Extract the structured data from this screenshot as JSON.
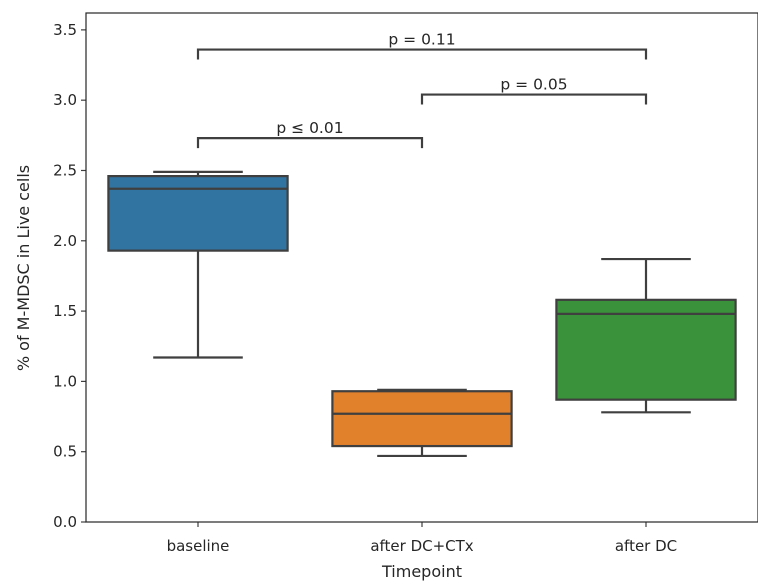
{
  "chart_data": {
    "type": "boxplot",
    "title": "",
    "xlabel": "Timepoint",
    "ylabel": "% of M-MDSC in Live cells",
    "ylim": [
      0,
      3.62
    ],
    "yticks": [
      "0.0",
      "0.5",
      "1.0",
      "1.5",
      "2.0",
      "2.5",
      "3.0",
      "3.5"
    ],
    "grid": false,
    "legend": "none",
    "categories": [
      "baseline",
      "after DC+CTx",
      "after DC"
    ],
    "boxes": [
      {
        "category": "baseline",
        "color": "#3274a1",
        "whisker_low": 1.17,
        "q1": 1.93,
        "median": 2.37,
        "q3": 2.46,
        "whisker_high": 2.49
      },
      {
        "category": "after DC+CTx",
        "color": "#e1812c",
        "whisker_low": 0.47,
        "q1": 0.54,
        "median": 0.77,
        "q3": 0.93,
        "whisker_high": 0.94
      },
      {
        "category": "after DC",
        "color": "#3a923a",
        "whisker_low": 0.78,
        "q1": 0.87,
        "median": 1.48,
        "q3": 1.58,
        "whisker_high": 1.87
      }
    ],
    "annotations": [
      {
        "from": 0,
        "to": 1,
        "y": 2.73,
        "label": "p ≤ 0.01"
      },
      {
        "from": 1,
        "to": 2,
        "y": 3.04,
        "label": "p = 0.05"
      },
      {
        "from": 0,
        "to": 2,
        "y": 3.36,
        "label": "p = 0.11"
      }
    ]
  }
}
